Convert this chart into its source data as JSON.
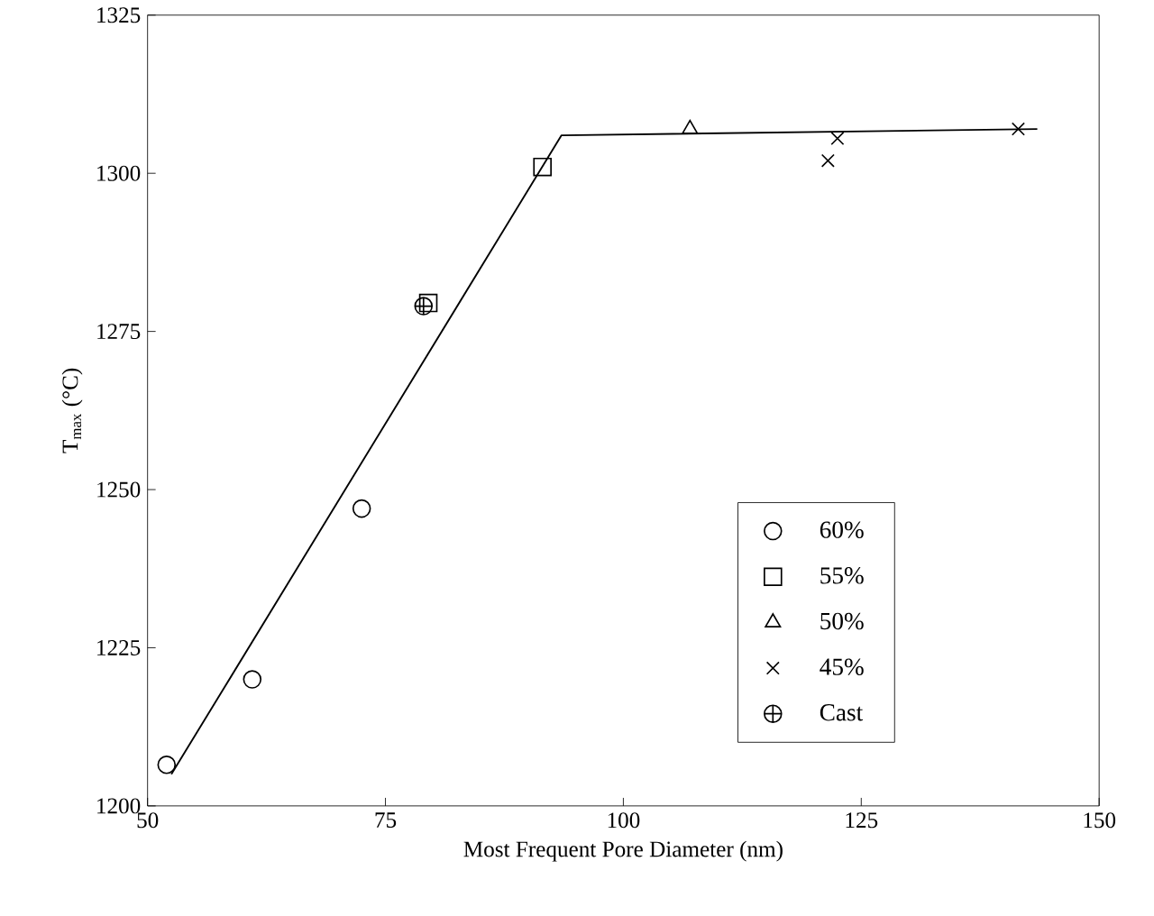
{
  "chart_data": {
    "type": "scatter",
    "xlabel": "Most Frequent Pore Diameter (nm)",
    "ylabel": "T$_{max}$ (°C)",
    "xlim": [
      50,
      150
    ],
    "ylim": [
      1200,
      1325
    ],
    "xticks": [
      50,
      75,
      100,
      125,
      150
    ],
    "yticks": [
      1200,
      1225,
      1250,
      1275,
      1300,
      1325
    ],
    "grid": false,
    "legend": "right",
    "series": [
      {
        "name": "60%",
        "color": "#000000",
        "marker": "circle",
        "x": [
          52,
          61,
          72.5
        ],
        "values": [
          1206.5,
          1220,
          1247
        ]
      },
      {
        "name": "55%",
        "color": "#000000",
        "marker": "square",
        "x": [
          79.5,
          91.5
        ],
        "values": [
          1279.5,
          1301
        ]
      },
      {
        "name": "50%",
        "color": "#000000",
        "marker": "triangle",
        "x": [
          107
        ],
        "values": [
          1307
        ]
      },
      {
        "name": "45%",
        "color": "#000000",
        "marker": "cross",
        "x": [
          121.5,
          122.5,
          141.5
        ],
        "values": [
          1302,
          1305.5,
          1307
        ]
      },
      {
        "name": "Cast",
        "color": "#000000",
        "x": [
          79
        ],
        "values": [
          1279
        ]
      },
      {
        "type": "line",
        "color": "#000000",
        "marker": "none",
        "line_style": "solid",
        "x": [
          52.5,
          93.5,
          143.5
        ],
        "values": [
          1205,
          1306,
          1307
        ]
      }
    ]
  }
}
